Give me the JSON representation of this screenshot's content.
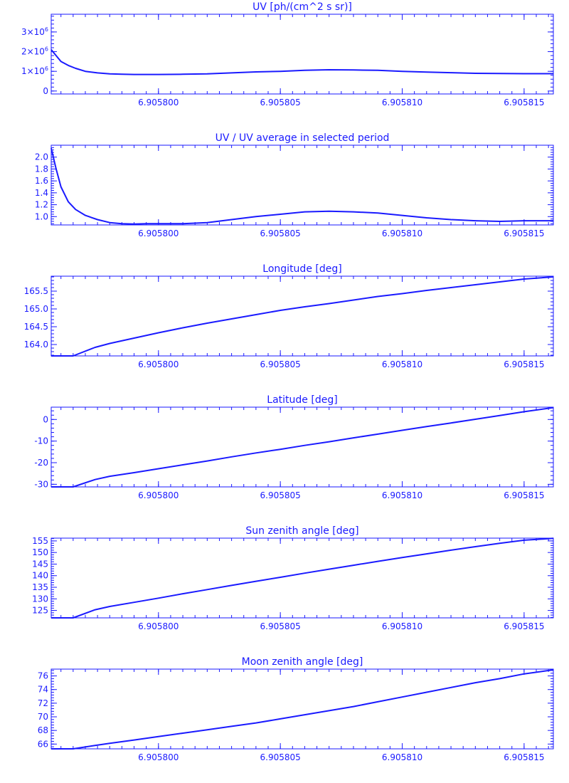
{
  "style": {
    "color": "#1a1aff",
    "background": "#ffffff"
  },
  "chart_data": [
    {
      "type": "line",
      "title": "UV [ph/(cm^2 s sr)]",
      "xlim": [
        6.9057956,
        6.9058162
      ],
      "ylim": [
        -0.15,
        3.9
      ],
      "x_ticks": [
        6.9058,
        6.905805,
        6.90581,
        6.905815
      ],
      "x_tick_labels": [
        "6.905800",
        "6.905805",
        "6.905810",
        "6.905815"
      ],
      "y_ticks": [
        0,
        1,
        2,
        3
      ],
      "y_tick_labels": [
        {
          "base": "0",
          "exp": ""
        },
        {
          "base": "1×10",
          "exp": "6"
        },
        {
          "base": "2×10",
          "exp": "6"
        },
        {
          "base": "3×10",
          "exp": "6"
        }
      ],
      "series": [
        {
          "x": [
            6.9057956,
            6.9057958,
            6.905796,
            6.9057963,
            6.9057966,
            6.905797,
            6.9057975,
            6.905798,
            6.9057985,
            6.905799,
            6.9057995,
            6.9058,
            6.905801,
            6.905802,
            6.905803,
            6.905804,
            6.905805,
            6.905806,
            6.905807,
            6.905808,
            6.905809,
            6.90581,
            6.905811,
            6.905812,
            6.905813,
            6.905814,
            6.905815,
            6.9058162
          ],
          "y": [
            2.1,
            1.8,
            1.5,
            1.3,
            1.15,
            1.0,
            0.92,
            0.87,
            0.85,
            0.84,
            0.84,
            0.84,
            0.85,
            0.87,
            0.92,
            0.97,
            1.0,
            1.05,
            1.08,
            1.07,
            1.05,
            1.0,
            0.96,
            0.93,
            0.9,
            0.89,
            0.88,
            0.88
          ]
        }
      ]
    },
    {
      "type": "line",
      "title": "UV / UV average in selected period",
      "xlim": [
        6.9057956,
        6.9058162
      ],
      "ylim": [
        0.86,
        2.2
      ],
      "x_ticks": [
        6.9058,
        6.905805,
        6.90581,
        6.905815
      ],
      "x_tick_labels": [
        "6.905800",
        "6.905805",
        "6.905810",
        "6.905815"
      ],
      "y_ticks": [
        1.0,
        1.2,
        1.4,
        1.6,
        1.8,
        2.0
      ],
      "y_tick_labels": [
        "1.0",
        "1.2",
        "1.4",
        "1.6",
        "1.8",
        "2.0"
      ],
      "series": [
        {
          "x": [
            6.9057956,
            6.9057958,
            6.905796,
            6.9057963,
            6.9057966,
            6.905797,
            6.9057975,
            6.905798,
            6.9057985,
            6.905799,
            6.9057995,
            6.9058,
            6.905801,
            6.905802,
            6.905803,
            6.905804,
            6.905805,
            6.905806,
            6.905807,
            6.905808,
            6.905809,
            6.90581,
            6.905811,
            6.905812,
            6.905813,
            6.905814,
            6.905815,
            6.9058162
          ],
          "y": [
            2.15,
            1.8,
            1.5,
            1.25,
            1.12,
            1.02,
            0.95,
            0.9,
            0.88,
            0.875,
            0.88,
            0.88,
            0.88,
            0.9,
            0.95,
            1.0,
            1.04,
            1.08,
            1.09,
            1.08,
            1.06,
            1.02,
            0.98,
            0.95,
            0.93,
            0.92,
            0.93,
            0.93
          ]
        }
      ]
    },
    {
      "type": "line",
      "title": "Longitude [deg]",
      "xlim": [
        6.9057956,
        6.9058162
      ],
      "ylim": [
        163.68,
        165.92
      ],
      "x_ticks": [
        6.9058,
        6.905805,
        6.90581,
        6.905815
      ],
      "x_tick_labels": [
        "6.905800",
        "6.905805",
        "6.905810",
        "6.905815"
      ],
      "y_ticks": [
        164.0,
        164.5,
        165.0,
        165.5
      ],
      "y_tick_labels": [
        "164.0",
        "164.5",
        "165.0",
        "165.5"
      ],
      "series": [
        {
          "x": [
            6.9057956,
            6.9057965,
            6.9057974,
            6.905798,
            6.905799,
            6.9058,
            6.905801,
            6.905802,
            6.905803,
            6.905804,
            6.905805,
            6.905806,
            6.905807,
            6.905808,
            6.905809,
            6.90581,
            6.905811,
            6.905812,
            6.905813,
            6.905814,
            6.905815,
            6.9058162
          ],
          "y": [
            163.68,
            163.68,
            163.92,
            164.03,
            164.18,
            164.33,
            164.47,
            164.6,
            164.72,
            164.84,
            164.96,
            165.06,
            165.15,
            165.25,
            165.35,
            165.43,
            165.52,
            165.6,
            165.68,
            165.76,
            165.84,
            165.9
          ]
        }
      ]
    },
    {
      "type": "line",
      "title": "Latitude [deg]",
      "xlim": [
        6.9057956,
        6.9058162
      ],
      "ylim": [
        -31.2,
        5.7
      ],
      "x_ticks": [
        6.9058,
        6.905805,
        6.90581,
        6.905815
      ],
      "x_tick_labels": [
        "6.905800",
        "6.905805",
        "6.905810",
        "6.905815"
      ],
      "y_ticks": [
        -30,
        -20,
        -10,
        0
      ],
      "y_tick_labels": [
        "-30",
        "-20",
        "-10",
        "0"
      ],
      "series": [
        {
          "x": [
            6.9057956,
            6.9057965,
            6.9057974,
            6.905798,
            6.905799,
            6.9058,
            6.905801,
            6.905802,
            6.905803,
            6.905804,
            6.905805,
            6.905806,
            6.905807,
            6.905808,
            6.905809,
            6.90581,
            6.905811,
            6.905812,
            6.905813,
            6.905814,
            6.905815,
            6.9058162
          ],
          "y": [
            -31.2,
            -31.2,
            -27.8,
            -26.3,
            -24.6,
            -22.8,
            -21.0,
            -19.2,
            -17.3,
            -15.5,
            -13.8,
            -12.0,
            -10.3,
            -8.5,
            -6.8,
            -5.0,
            -3.3,
            -1.6,
            0.1,
            1.8,
            3.6,
            5.5
          ]
        }
      ]
    },
    {
      "type": "line",
      "title": "Sun zenith angle [deg]",
      "xlim": [
        6.9057956,
        6.9058162
      ],
      "ylim": [
        121.8,
        156.2
      ],
      "x_ticks": [
        6.9058,
        6.905805,
        6.90581,
        6.905815
      ],
      "x_tick_labels": [
        "6.905800",
        "6.905805",
        "6.905810",
        "6.905815"
      ],
      "y_ticks": [
        125,
        130,
        135,
        140,
        145,
        150,
        155
      ],
      "y_tick_labels": [
        "125",
        "130",
        "135",
        "140",
        "145",
        "150",
        "155"
      ],
      "series": [
        {
          "x": [
            6.9057956,
            6.9057965,
            6.9057974,
            6.905798,
            6.905799,
            6.9058,
            6.905801,
            6.905802,
            6.905803,
            6.905804,
            6.905805,
            6.905806,
            6.905807,
            6.905808,
            6.905809,
            6.90581,
            6.905811,
            6.905812,
            6.905813,
            6.905814,
            6.905815,
            6.9058162
          ],
          "y": [
            121.8,
            121.8,
            125.3,
            126.7,
            128.5,
            130.3,
            132.2,
            134.0,
            135.8,
            137.6,
            139.3,
            141.1,
            142.8,
            144.5,
            146.2,
            147.8,
            149.4,
            151.0,
            152.5,
            154.0,
            155.3,
            156.1
          ]
        }
      ]
    },
    {
      "type": "line",
      "title": "Moon zenith angle [deg]",
      "xlim": [
        6.9057956,
        6.9058162
      ],
      "ylim": [
        65.3,
        77.0
      ],
      "x_ticks": [
        6.9058,
        6.905805,
        6.90581,
        6.905815
      ],
      "x_tick_labels": [
        "6.905800",
        "6.905805",
        "6.905810",
        "6.905815"
      ],
      "y_ticks": [
        66,
        68,
        70,
        72,
        74,
        76
      ],
      "y_tick_labels": [
        "66",
        "68",
        "70",
        "72",
        "74",
        "76"
      ],
      "series": [
        {
          "x": [
            6.9057956,
            6.9057965,
            6.9057974,
            6.905798,
            6.905799,
            6.9058,
            6.905801,
            6.905802,
            6.905803,
            6.905804,
            6.905805,
            6.905806,
            6.905807,
            6.905808,
            6.905809,
            6.90581,
            6.905811,
            6.905812,
            6.905813,
            6.905814,
            6.905815,
            6.9058162
          ],
          "y": [
            65.3,
            65.3,
            65.8,
            66.1,
            66.6,
            67.1,
            67.6,
            68.1,
            68.6,
            69.1,
            69.7,
            70.3,
            70.9,
            71.5,
            72.2,
            72.9,
            73.6,
            74.3,
            75.0,
            75.6,
            76.3,
            76.9
          ]
        }
      ]
    }
  ]
}
